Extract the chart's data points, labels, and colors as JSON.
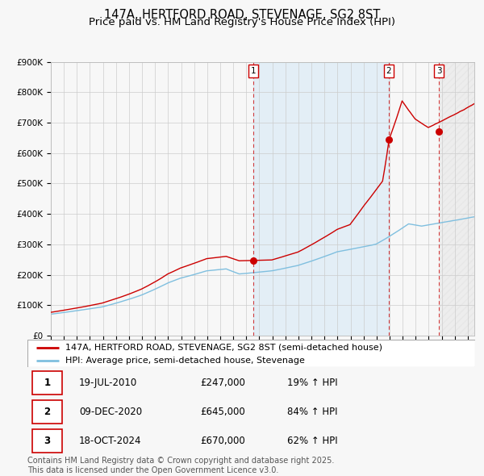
{
  "title": "147A, HERTFORD ROAD, STEVENAGE, SG2 8ST",
  "subtitle": "Price paid vs. HM Land Registry's House Price Index (HPI)",
  "ylim": [
    0,
    900000
  ],
  "yticks": [
    0,
    100000,
    200000,
    300000,
    400000,
    500000,
    600000,
    700000,
    800000,
    900000
  ],
  "ytick_labels": [
    "£0",
    "£100K",
    "£200K",
    "£300K",
    "£400K",
    "£500K",
    "£600K",
    "£700K",
    "£800K",
    "£900K"
  ],
  "hpi_color": "#7fbfdf",
  "price_color": "#cc0000",
  "background_color": "#f7f7f7",
  "grid_color": "#cccccc",
  "transaction1_date": 2010.54,
  "transaction1_price": 247000,
  "transaction2_date": 2020.92,
  "transaction2_price": 645000,
  "transaction3_date": 2024.79,
  "transaction3_price": 670000,
  "legend_house_label": "147A, HERTFORD ROAD, STEVENAGE, SG2 8ST (semi-detached house)",
  "legend_hpi_label": "HPI: Average price, semi-detached house, Stevenage",
  "table_rows": [
    [
      "1",
      "19-JUL-2010",
      "£247,000",
      "19% ↑ HPI"
    ],
    [
      "2",
      "09-DEC-2020",
      "£645,000",
      "84% ↑ HPI"
    ],
    [
      "3",
      "18-OCT-2024",
      "£670,000",
      "62% ↑ HPI"
    ]
  ],
  "footer_text": "Contains HM Land Registry data © Crown copyright and database right 2025.\nThis data is licensed under the Open Government Licence v3.0.",
  "title_fontsize": 10.5,
  "subtitle_fontsize": 9.5,
  "tick_fontsize": 7.5,
  "legend_fontsize": 8,
  "table_fontsize": 8.5,
  "footer_fontsize": 7.0
}
